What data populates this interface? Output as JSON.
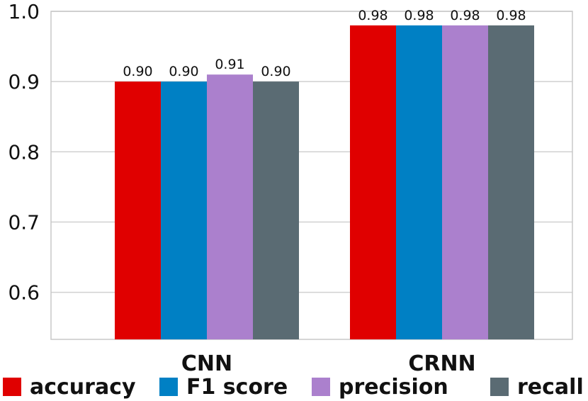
{
  "chart_data": {
    "type": "bar",
    "categories": [
      "CNN",
      "CRNN"
    ],
    "series": [
      {
        "name": "accuracy",
        "values": [
          0.9,
          0.98
        ],
        "labels": [
          "0.90",
          "0.98"
        ],
        "color": "#e00000"
      },
      {
        "name": "F1 score",
        "values": [
          0.9,
          0.98
        ],
        "labels": [
          "0.90",
          "0.98"
        ],
        "color": "#0080c4"
      },
      {
        "name": "precision",
        "values": [
          0.91,
          0.98
        ],
        "labels": [
          "0.91",
          "0.98"
        ],
        "color": "#ab80cd"
      },
      {
        "name": "recall",
        "values": [
          0.9,
          0.98
        ],
        "labels": [
          "0.90",
          "0.98"
        ],
        "color": "#5a6b73"
      }
    ],
    "y_ticks": [
      "0.6",
      "0.7",
      "0.8",
      "0.9",
      "1.0"
    ],
    "ylim": [
      0.533,
      1.0
    ],
    "grid": true,
    "legend_position": "bottom",
    "title": "",
    "xlabel": "",
    "ylabel": ""
  }
}
